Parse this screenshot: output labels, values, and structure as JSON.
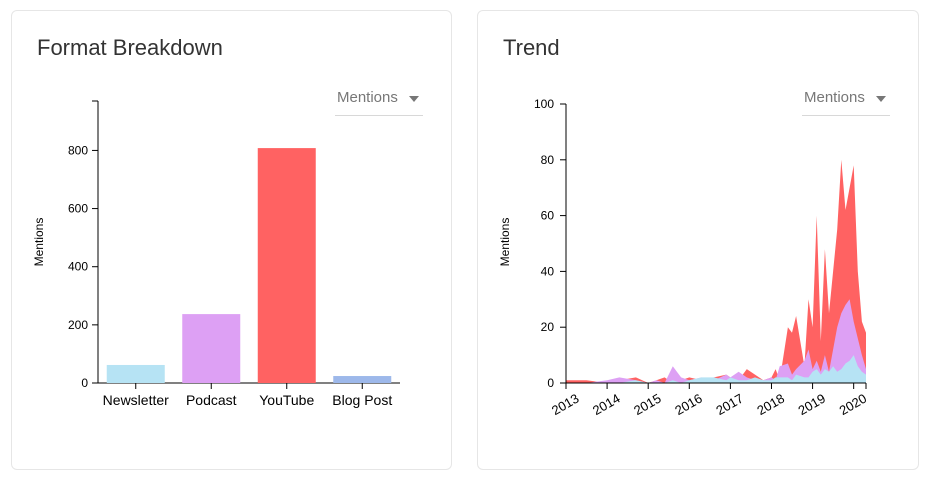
{
  "cards": [
    {
      "title": "Format Breakdown",
      "dropdown": "Mentions"
    },
    {
      "title": "Trend",
      "dropdown": "Mentions"
    }
  ],
  "chart_data": [
    {
      "type": "bar",
      "ylabel": "Mentions",
      "categories": [
        "Newsletter",
        "Podcast",
        "YouTube",
        "Blog Post"
      ],
      "values": [
        62,
        237,
        808,
        24
      ],
      "colors": [
        "#b6e3f4",
        "#dda0f4",
        "#ff6262",
        "#9db8ea"
      ],
      "ylim": [
        0,
        970
      ],
      "yticks": [
        0,
        200,
        400,
        600,
        800
      ]
    },
    {
      "type": "area",
      "stacked": false,
      "ylabel": "Mentions",
      "ylim": [
        0,
        100
      ],
      "yticks": [
        0,
        20,
        40,
        60,
        80,
        100
      ],
      "x_tick_labels": [
        "2013",
        "2014",
        "2015",
        "2016",
        "2017",
        "2018",
        "2019",
        "2020"
      ],
      "x": [
        2013.0,
        2013.5,
        2014.0,
        2014.3,
        2014.7,
        2015.0,
        2015.2,
        2015.4,
        2015.6,
        2015.8,
        2016.0,
        2016.3,
        2016.6,
        2016.9,
        2017.0,
        2017.2,
        2017.4,
        2017.6,
        2017.8,
        2018.0,
        2018.1,
        2018.2,
        2018.4,
        2018.5,
        2018.6,
        2018.8,
        2018.9,
        2019.0,
        2019.1,
        2019.2,
        2019.3,
        2019.4,
        2019.5,
        2019.6,
        2019.7,
        2019.8,
        2019.9,
        2020.0,
        2020.1,
        2020.2,
        2020.3
      ],
      "series": [
        {
          "color": "#ff6262",
          "values": [
            1,
            1,
            0,
            1,
            2,
            0,
            1,
            2,
            0,
            1,
            2,
            1,
            2,
            3,
            2,
            1,
            5,
            3,
            1,
            2,
            5,
            1,
            20,
            18,
            24,
            6,
            30,
            20,
            60,
            15,
            48,
            25,
            40,
            55,
            80,
            62,
            70,
            78,
            40,
            22,
            18
          ]
        },
        {
          "color": "#dda0f4",
          "values": [
            0,
            0,
            1,
            2,
            1,
            0,
            1,
            0,
            6,
            2,
            1,
            2,
            1,
            3,
            2,
            4,
            2,
            1,
            1,
            2,
            1,
            6,
            7,
            3,
            5,
            8,
            12,
            5,
            8,
            4,
            10,
            4,
            12,
            20,
            25,
            28,
            30,
            22,
            16,
            10,
            5
          ]
        },
        {
          "color": "#b6e3f4",
          "values": [
            0,
            0,
            0,
            0,
            1,
            0,
            0,
            0,
            1,
            0,
            1,
            2,
            2,
            1,
            2,
            1,
            1,
            2,
            1,
            1,
            2,
            2,
            2,
            1,
            3,
            2,
            2,
            4,
            5,
            3,
            5,
            4,
            6,
            4,
            5,
            7,
            8,
            10,
            6,
            4,
            3
          ]
        }
      ]
    }
  ]
}
